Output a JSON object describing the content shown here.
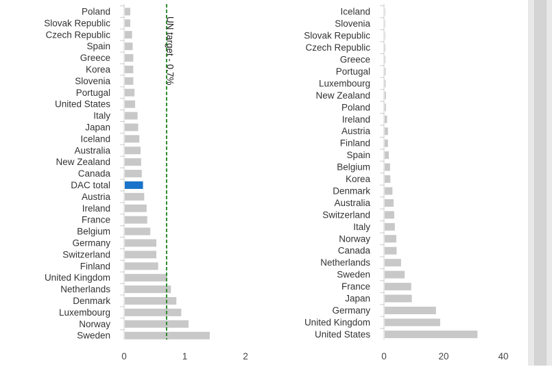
{
  "colors": {
    "bar": "#c8c8c8",
    "highlight": "#1a73c8",
    "axis": "#cccccc",
    "target_line": "#2e8b2e"
  },
  "chart_data": [
    {
      "type": "bar",
      "orientation": "horizontal",
      "title": "",
      "xlabel": "",
      "ylabel": "",
      "xlim": [
        0,
        2
      ],
      "xticks": [
        {
          "value": 0,
          "label": "0"
        },
        {
          "value": 1,
          "label": "1"
        },
        {
          "value": 2,
          "label": "2"
        }
      ],
      "categories": [
        "Poland",
        "Slovak Republic",
        "Czech Republic",
        "Spain",
        "Greece",
        "Korea",
        "Slovenia",
        "Portugal",
        "United States",
        "Italy",
        "Japan",
        "Iceland",
        "Australia",
        "New Zealand",
        "Canada",
        "DAC total",
        "Austria",
        "Ireland",
        "France",
        "Belgium",
        "Germany",
        "Switzerland",
        "Finland",
        "United Kingdom",
        "Netherlands",
        "Denmark",
        "Luxembourg",
        "Norway",
        "Sweden"
      ],
      "values": [
        0.09,
        0.09,
        0.12,
        0.13,
        0.14,
        0.14,
        0.14,
        0.16,
        0.17,
        0.21,
        0.22,
        0.24,
        0.26,
        0.27,
        0.28,
        0.3,
        0.32,
        0.36,
        0.37,
        0.42,
        0.52,
        0.52,
        0.55,
        0.7,
        0.76,
        0.85,
        0.93,
        1.05,
        1.4
      ],
      "highlight": "DAC total",
      "reference_line": {
        "value": 0.7,
        "label": "UN target - 0.7%"
      },
      "grid": false,
      "legend": "none"
    },
    {
      "type": "bar",
      "orientation": "horizontal",
      "title": "",
      "xlabel": "",
      "ylabel": "",
      "xlim": [
        0,
        40
      ],
      "xticks": [
        {
          "value": 0,
          "label": "0"
        },
        {
          "value": 20,
          "label": "20"
        },
        {
          "value": 40,
          "label": "40"
        }
      ],
      "categories": [
        "Iceland",
        "Slovenia",
        "Slovak Republic",
        "Czech Republic",
        "Greece",
        "Portugal",
        "Luxembourg",
        "New Zealand",
        "Poland",
        "Ireland",
        "Austria",
        "Finland",
        "Spain",
        "Belgium",
        "Korea",
        "Denmark",
        "Australia",
        "Switzerland",
        "Italy",
        "Norway",
        "Canada",
        "Netherlands",
        "Sweden",
        "France",
        "Japan",
        "Germany",
        "United Kingdom",
        "United States"
      ],
      "values": [
        0.04,
        0.06,
        0.08,
        0.2,
        0.2,
        0.3,
        0.3,
        0.4,
        0.4,
        0.8,
        1.1,
        1.1,
        1.4,
        1.8,
        1.9,
        2.6,
        3.0,
        3.2,
        3.4,
        3.9,
        4.0,
        5.5,
        6.7,
        8.9,
        9.1,
        17.2,
        18.6,
        31.1
      ],
      "grid": false,
      "legend": "none"
    }
  ]
}
